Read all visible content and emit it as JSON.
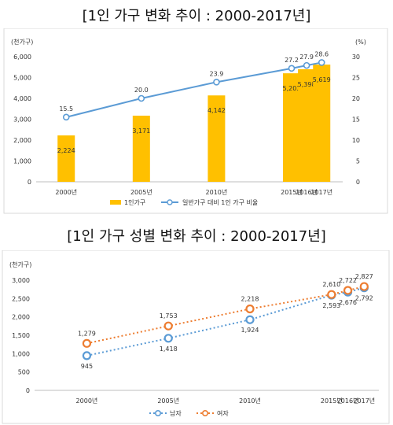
{
  "chart_data": [
    {
      "type": "bar",
      "title": "[1인 가구 변화 추이 : 2000-2017년]",
      "categories": [
        "2000년",
        "2005년",
        "2010년",
        "2015년",
        "2016년",
        "2017년"
      ],
      "x": [
        2000,
        2005,
        2010,
        2015,
        2016,
        2017
      ],
      "series": [
        {
          "name": "1인가구",
          "type": "bar",
          "axis": "left",
          "color": "#FFC000",
          "values": [
            2224,
            3171,
            4142,
            5203,
            5398,
            5619
          ],
          "labels": [
            "2,224",
            "3,171",
            "4,142",
            "5,203",
            "5,398",
            "5,619"
          ]
        },
        {
          "name": "일반가구 대비 1인 가구 비율",
          "type": "line",
          "axis": "right",
          "color": "#5B9BD5",
          "values": [
            15.5,
            20.0,
            23.9,
            27.2,
            27.9,
            28.6
          ],
          "labels": [
            "15.5",
            "20.0",
            "23.9",
            "27.2",
            "27.9",
            "28.6"
          ]
        }
      ],
      "ylabel": "(천가구)",
      "y2label": "(%)",
      "ylim": [
        0,
        6000
      ],
      "y2lim": [
        0,
        30
      ],
      "yticks": [
        "0",
        "1,000",
        "2,000",
        "3,000",
        "4,000",
        "5,000",
        "6,000"
      ],
      "y2ticks": [
        "0",
        "5",
        "10",
        "15",
        "20",
        "25",
        "30"
      ],
      "grid": false,
      "legend": "bottom"
    },
    {
      "type": "line",
      "title": "[1인 가구 성별 변화 추이 : 2000-2017년]",
      "categories": [
        "2000년",
        "2005년",
        "2010년",
        "2015년",
        "2016년",
        "2017년"
      ],
      "x": [
        2000,
        2005,
        2010,
        2015,
        2016,
        2017
      ],
      "series": [
        {
          "name": "남자",
          "color": "#5B9BD5",
          "style": "dotted",
          "values": [
            945,
            1418,
            1924,
            2593,
            2676,
            2792
          ],
          "labels": [
            "945",
            "1,418",
            "1,924",
            "2,593",
            "2,676",
            "2,792"
          ]
        },
        {
          "name": "여자",
          "color": "#ED7D31",
          "style": "dotted",
          "values": [
            1279,
            1753,
            2218,
            2610,
            2722,
            2827
          ],
          "labels": [
            "1,279",
            "1,753",
            "2,218",
            "2,610",
            "2,722",
            "2,827"
          ]
        }
      ],
      "ylabel": "(천가구)",
      "ylim": [
        0,
        3000
      ],
      "yticks": [
        "0",
        "500",
        "1,000",
        "1,500",
        "2,000",
        "2,500",
        "3,000"
      ],
      "grid": false,
      "legend": "bottom"
    }
  ]
}
